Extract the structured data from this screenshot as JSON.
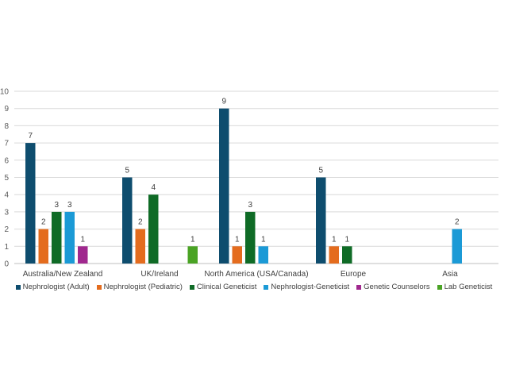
{
  "chart_data": {
    "type": "bar",
    "categories": [
      "Australia/New Zealand",
      "UK/Ireland",
      "North America (USA/Canada)",
      "Europe",
      "Asia"
    ],
    "series": [
      {
        "name": "Nephrologist (Adult)",
        "color": "#0e4d6e",
        "values": [
          7,
          5,
          9,
          5,
          null
        ]
      },
      {
        "name": "Nephrologist (Pediatric)",
        "color": "#e46c1e",
        "values": [
          2,
          2,
          1,
          1,
          null
        ]
      },
      {
        "name": "Clinical Geneticist",
        "color": "#0f6b26",
        "values": [
          3,
          4,
          3,
          1,
          null
        ]
      },
      {
        "name": "Nephrologist-Geneticist",
        "color": "#1b9ad6",
        "values": [
          3,
          null,
          1,
          null,
          2
        ]
      },
      {
        "name": "Genetic Counselors",
        "color": "#a0288e",
        "values": [
          1,
          null,
          null,
          null,
          null
        ]
      },
      {
        "name": "Lab Geneticist",
        "color": "#4aa324",
        "values": [
          null,
          1,
          null,
          null,
          null
        ]
      }
    ],
    "ylim": [
      0,
      10
    ],
    "yticks": [
      0,
      1,
      2,
      3,
      4,
      5,
      6,
      7,
      8,
      9,
      10
    ],
    "grid": true,
    "legend_position": "bottom",
    "data_labels": true
  }
}
